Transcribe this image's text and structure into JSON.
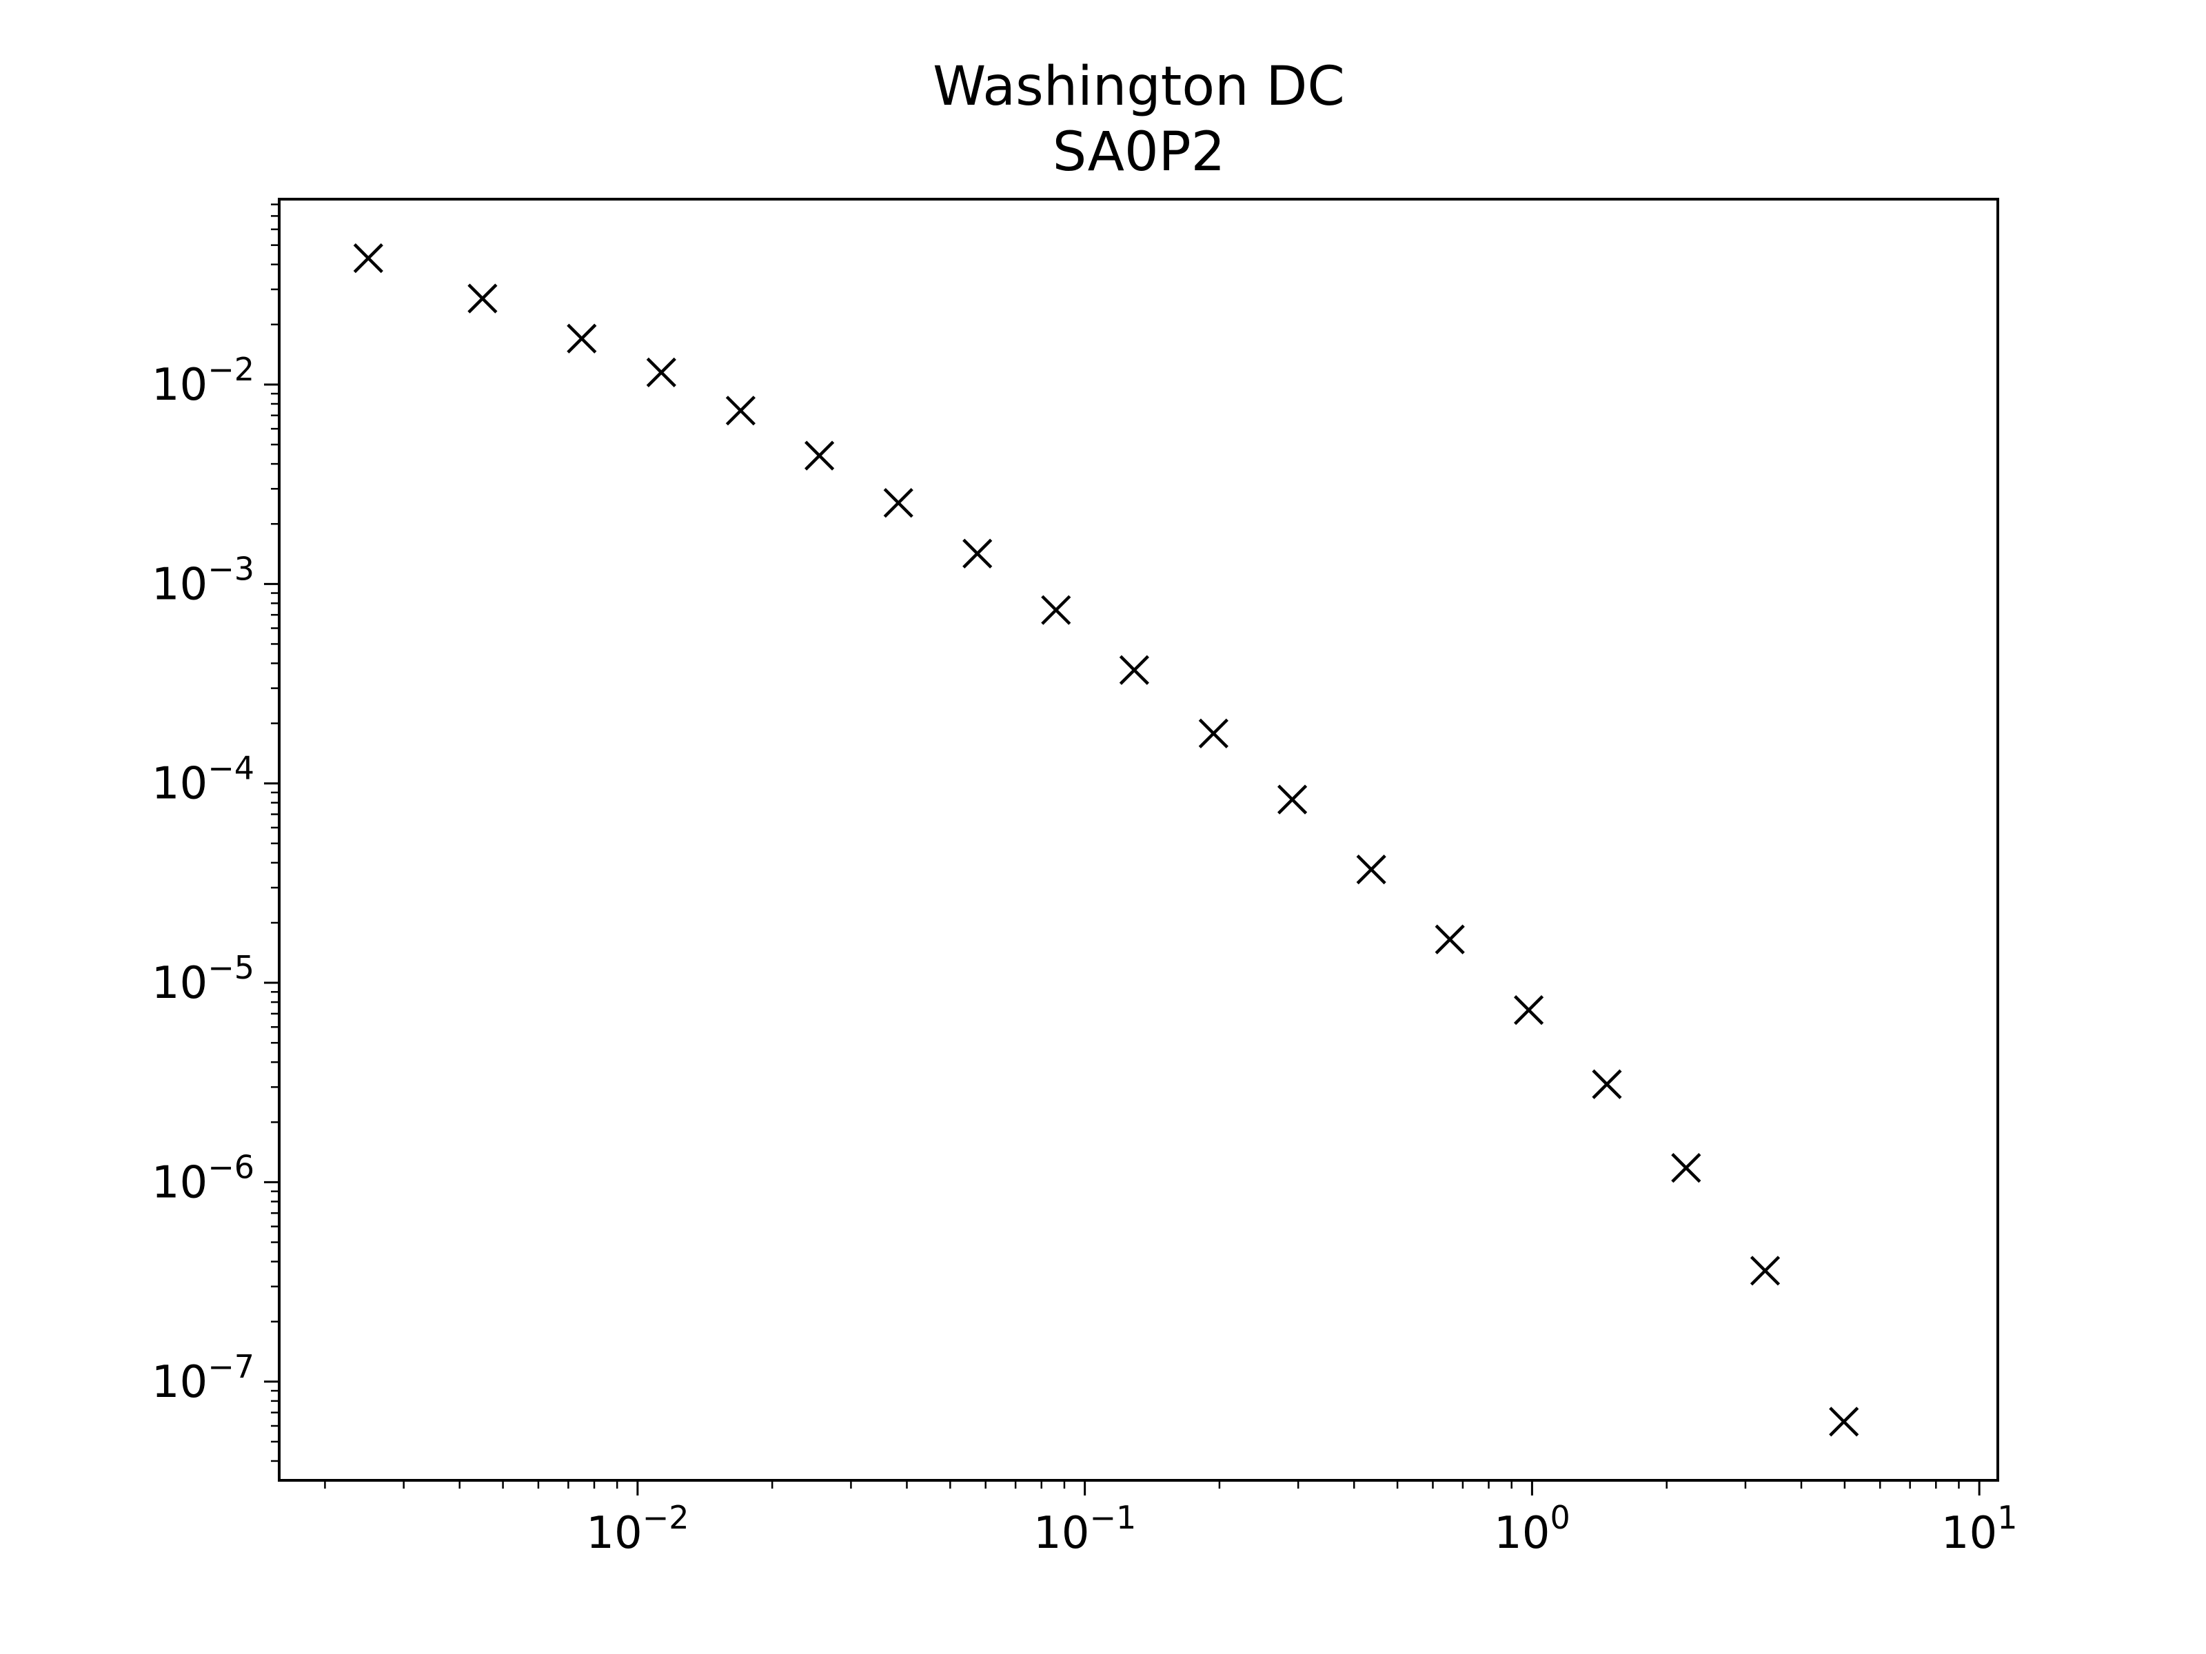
{
  "chart_data": {
    "type": "scatter",
    "title": [
      "Washington DC",
      "SA0P2"
    ],
    "xlabel": "",
    "ylabel": "",
    "xscale": "log",
    "yscale": "log",
    "xlim": [
      0.00158,
      11.0
    ],
    "ylim": [
      3.2e-08,
      0.085
    ],
    "grid": false,
    "marker": "x",
    "marker_color": "#000000",
    "x_ticks": [
      {
        "value": 0.01,
        "base": "10",
        "exp": "−2"
      },
      {
        "value": 0.1,
        "base": "10",
        "exp": "−1"
      },
      {
        "value": 1,
        "base": "10",
        "exp": "0"
      },
      {
        "value": 10,
        "base": "10",
        "exp": "1"
      }
    ],
    "y_ticks": [
      {
        "value": 0.01,
        "base": "10",
        "exp": "−2"
      },
      {
        "value": 0.001,
        "base": "10",
        "exp": "−3"
      },
      {
        "value": 0.0001,
        "base": "10",
        "exp": "−4"
      },
      {
        "value": 1e-05,
        "base": "10",
        "exp": "−5"
      },
      {
        "value": 1e-06,
        "base": "10",
        "exp": "−6"
      },
      {
        "value": 1e-07,
        "base": "10",
        "exp": "−7"
      }
    ],
    "series": [
      {
        "x": [
          0.0025,
          0.0045,
          0.0075,
          0.0113,
          0.017,
          0.0255,
          0.0383,
          0.0575,
          0.0862,
          0.129,
          0.194,
          0.291,
          0.437,
          0.655,
          0.983,
          1.47,
          2.21,
          3.32,
          4.98
        ],
        "y": [
          0.043,
          0.027,
          0.017,
          0.0115,
          0.0074,
          0.0044,
          0.00255,
          0.00142,
          0.00074,
          0.00037,
          0.000178,
          8.3e-05,
          3.7e-05,
          1.65e-05,
          7.3e-06,
          3.1e-06,
          1.18e-06,
          3.6e-07,
          6.3e-08
        ]
      }
    ]
  }
}
